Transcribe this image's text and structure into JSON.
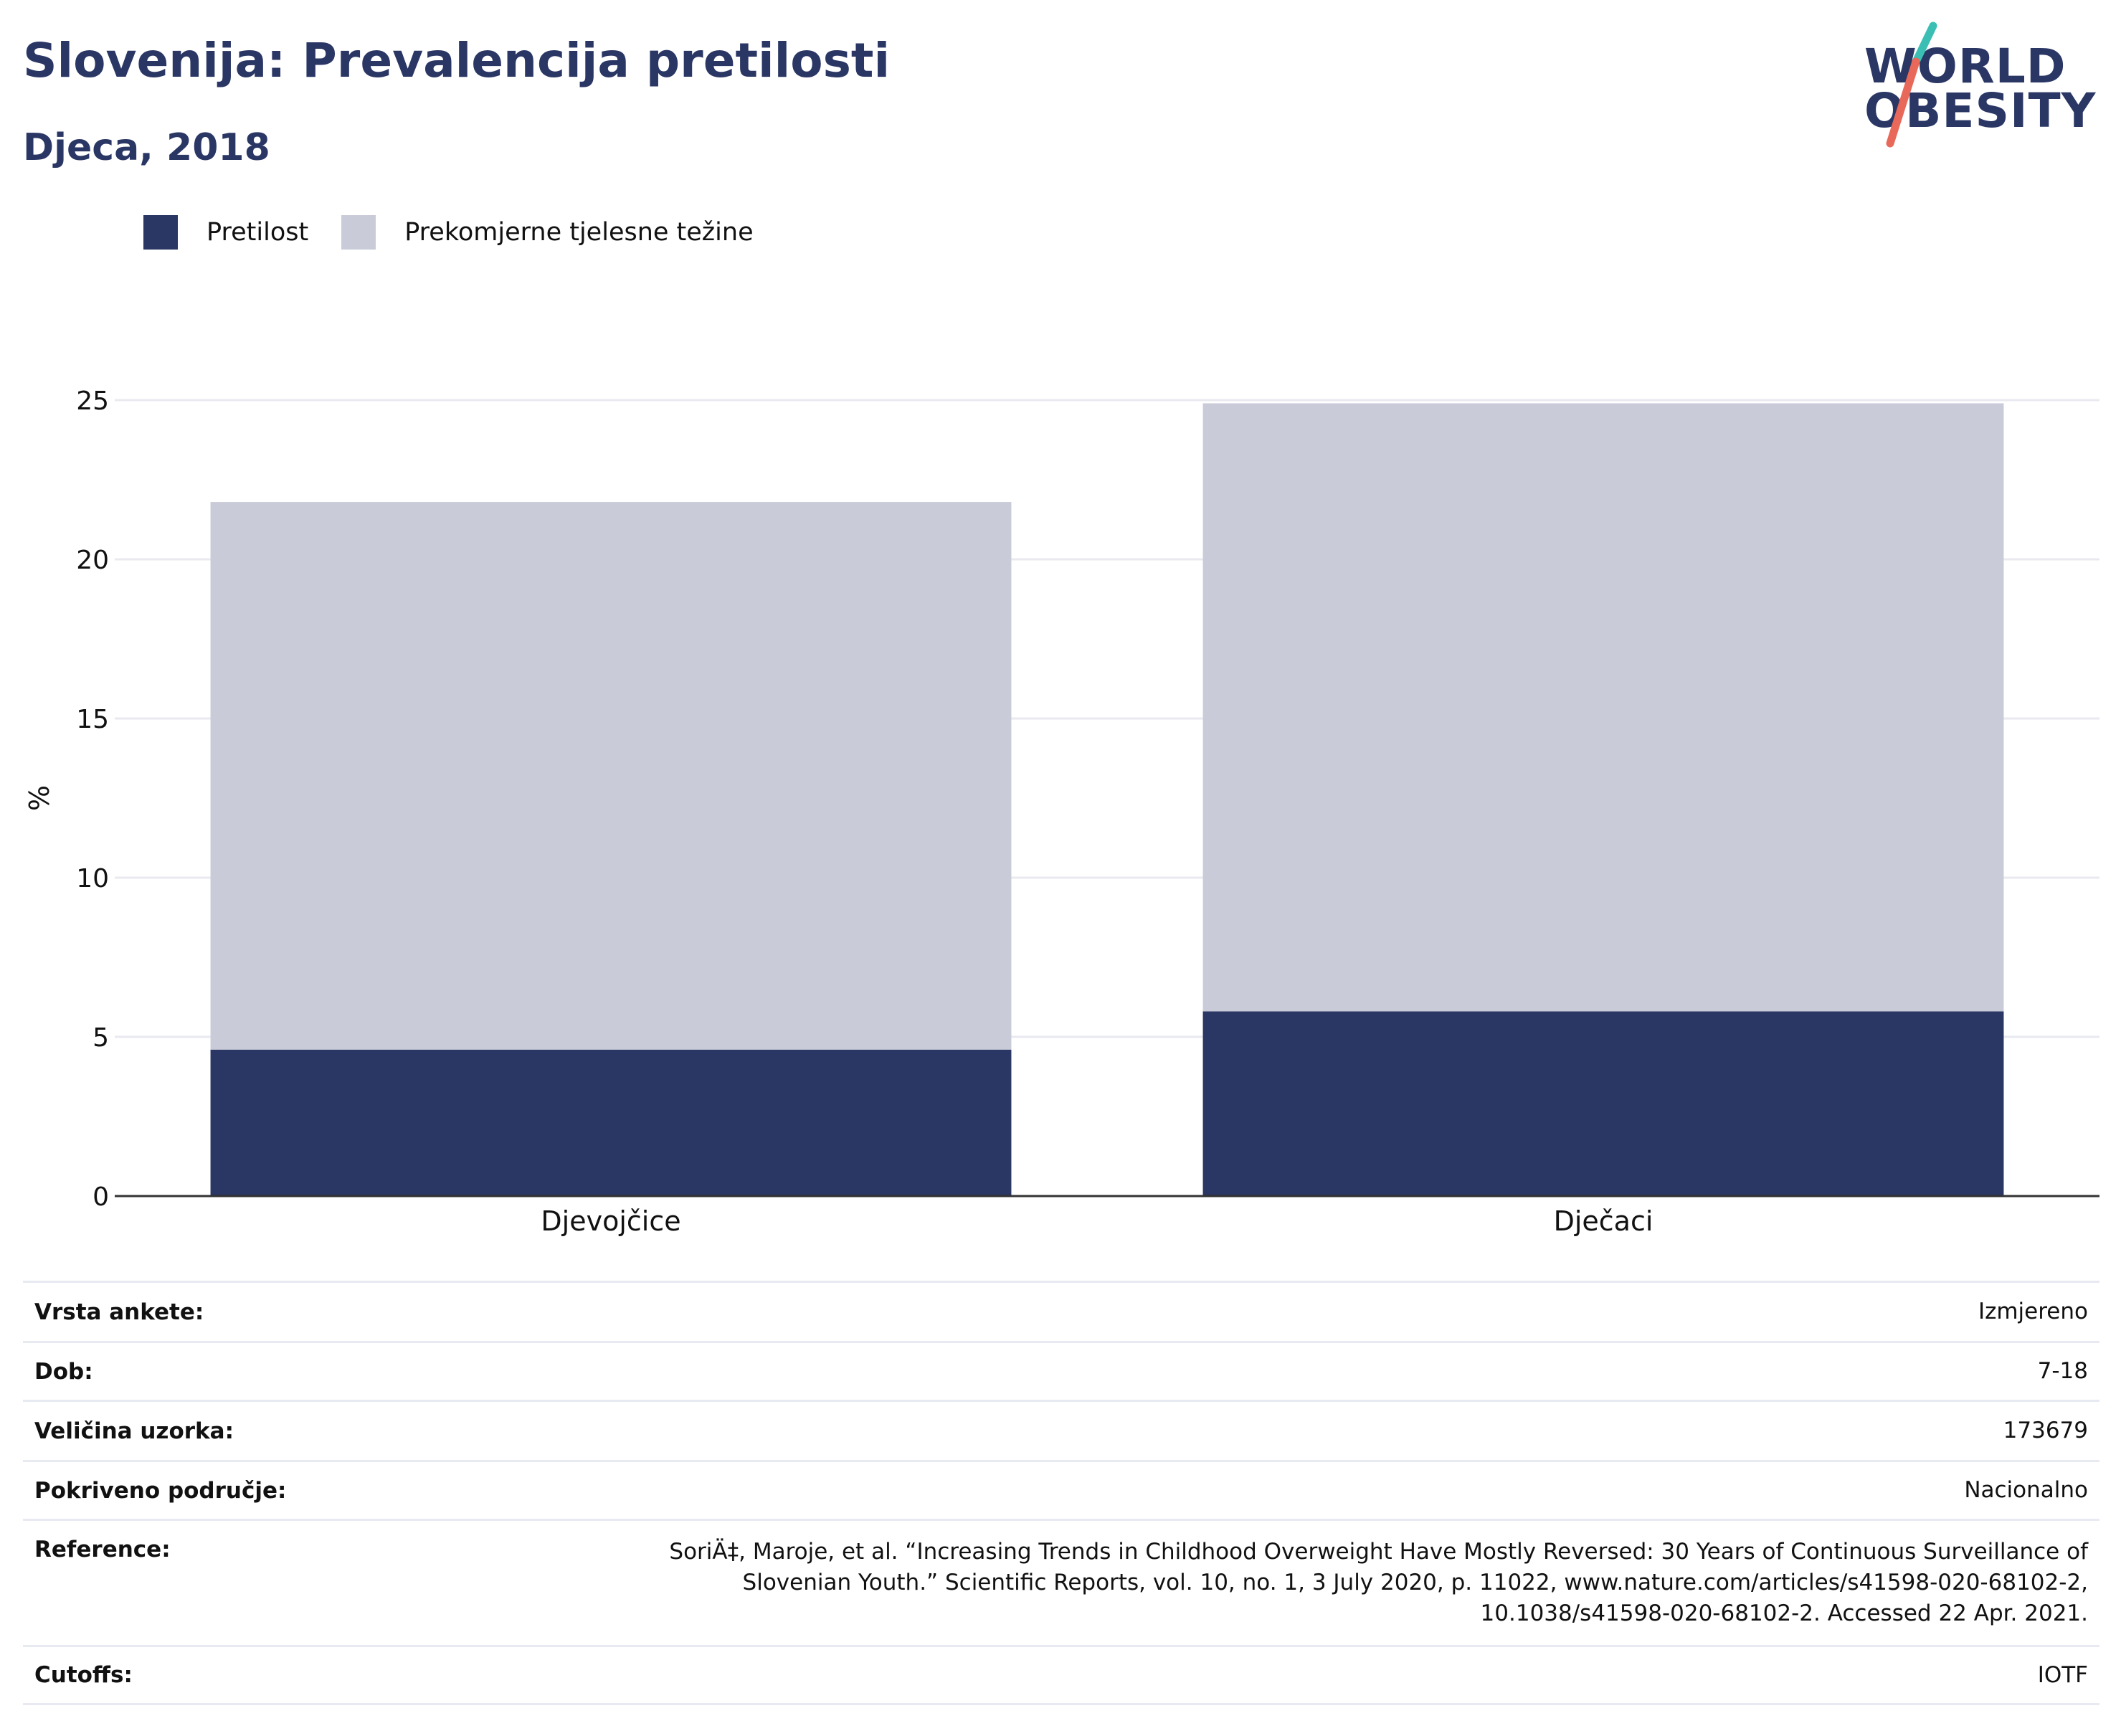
{
  "header": {
    "title": "Slovenija: Prevalencija pretilosti",
    "subtitle": "Djeca, 2018"
  },
  "logo": {
    "line1": "WORLD",
    "line2": "OBESITY",
    "colors": {
      "text": "#2a3664",
      "slash_top": "#3bbfb4",
      "slash_bottom": "#e8685a"
    }
  },
  "legend": [
    {
      "label": "Pretilost",
      "color": "#2a3664"
    },
    {
      "label": "Prekomjerne tjelesne težine",
      "color": "#c9ccd8"
    }
  ],
  "chart_data": {
    "type": "bar",
    "stacked": true,
    "categories": [
      "Djevojčice",
      "Dječaci"
    ],
    "series": [
      {
        "name": "Pretilost",
        "values": [
          4.6,
          5.8
        ],
        "color": "#2a3664"
      },
      {
        "name": "Prekomjerne tjelesne težine",
        "values": [
          17.2,
          19.1
        ],
        "color": "#c9ccd8"
      }
    ],
    "ylabel": "%",
    "xlabel": "",
    "ylim": [
      0,
      25
    ],
    "yticks": [
      0,
      5,
      10,
      15,
      20,
      25
    ],
    "grid": true,
    "legend_position": "top-left"
  },
  "info_table": [
    {
      "key": "Vrsta ankete:",
      "value": "Izmjereno"
    },
    {
      "key": "Dob:",
      "value": "7-18"
    },
    {
      "key": "Veličina uzorka:",
      "value": "173679"
    },
    {
      "key": "Pokriveno područje:",
      "value": "Nacionalno"
    },
    {
      "key": "Reference:",
      "value": "SoriÄ‡, Maroje, et al. “Increasing Trends in Childhood Overweight Have Mostly Reversed: 30 Years of Continuous Surveillance of Slovenian Youth.” Scientific Reports, vol. 10, no. 1, 3 July 2020, p. 11022, www.nature.com/articles/s41598-020-68102-2, 10.1038/s41598-020-68102-2. Accessed 22 Apr. 2021."
    },
    {
      "key": "Cutoffs:",
      "value": "IOTF"
    }
  ]
}
